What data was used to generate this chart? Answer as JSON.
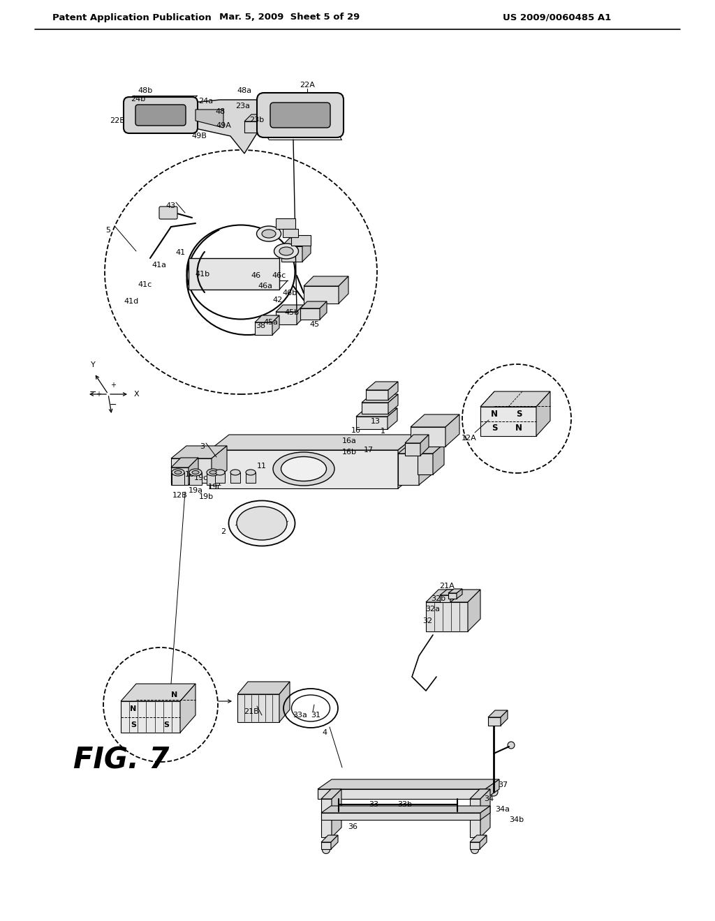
{
  "title": "FIG. 7",
  "header_left": "Patent Application Publication",
  "header_center": "Mar. 5, 2009  Sheet 5 of 29",
  "header_right": "US 2009/0060485 A1",
  "bg_color": "#ffffff",
  "line_color": "#000000",
  "header_fontsize": 9.5,
  "title_fontsize": 30,
  "label_fontsize": 8.0,
  "label_fontsize_sm": 7.5,
  "fig_width": 10.24,
  "fig_height": 13.2,
  "dpi": 100
}
